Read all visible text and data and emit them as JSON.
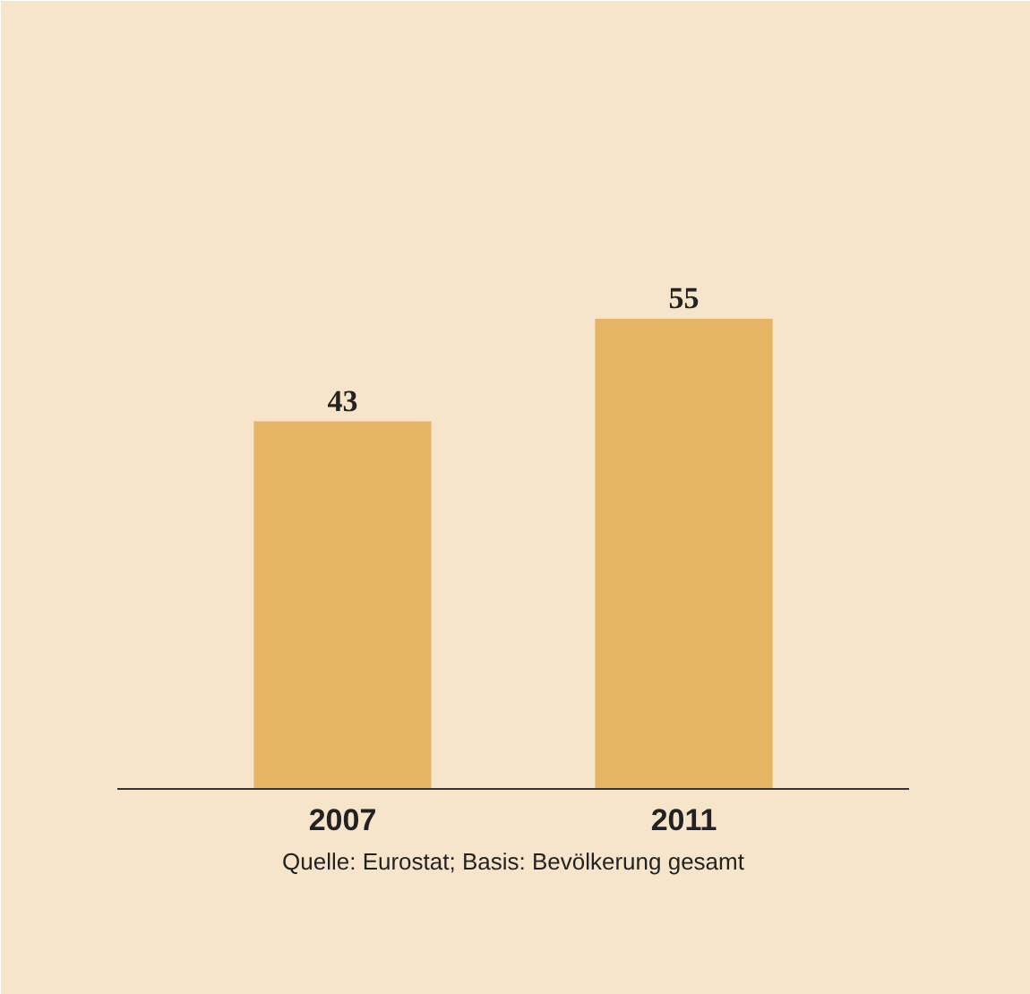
{
  "chart_data": {
    "type": "bar",
    "categories": [
      "2007",
      "2011"
    ],
    "values": [
      43,
      55
    ],
    "color": "#e6b465",
    "data_labels": true,
    "annotations": [
      "Quelle: Eurostat; Basis: Bevölkerung gesamt"
    ]
  }
}
